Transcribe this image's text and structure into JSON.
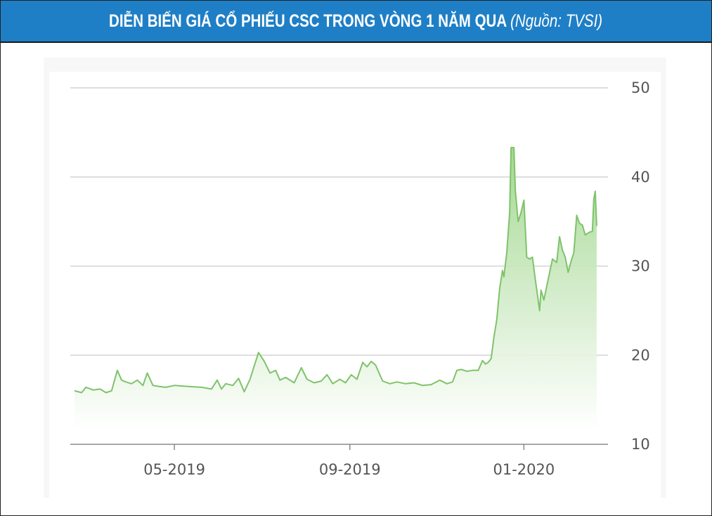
{
  "header": {
    "title": "DIỄN BIẾN GIÁ CỔ PHIẾU CSC TRONG VÒNG 1 NĂM QUA",
    "source": "(Nguồn: TVSI)"
  },
  "chart_data": {
    "type": "area",
    "title": "DIỄN BIẾN GIÁ CỔ PHIẾU CSC TRONG VÒNG 1 NĂM QUA",
    "xlabel": "",
    "ylabel": "",
    "ylim": [
      10,
      50
    ],
    "yticks": [
      10,
      20,
      30,
      40,
      50
    ],
    "xticks": [
      {
        "label": "05-2019",
        "date": "2019-05-01"
      },
      {
        "label": "09-2019",
        "date": "2019-09-01"
      },
      {
        "label": "01-2020",
        "date": "2020-01-01"
      }
    ],
    "xlim": [
      "2019-02-20",
      "2020-02-25"
    ],
    "grid": true,
    "colors": {
      "line": "#7fc36b",
      "fill_top": "#9fd68c",
      "fill_bottom": "#ffffff",
      "grid": "#d4d4d4"
    },
    "series": [
      {
        "points": [
          [
            "2019-02-20",
            16.0
          ],
          [
            "2019-02-25",
            15.8
          ],
          [
            "2019-02-28",
            16.4
          ],
          [
            "2019-03-05",
            16.1
          ],
          [
            "2019-03-10",
            16.2
          ],
          [
            "2019-03-14",
            15.8
          ],
          [
            "2019-03-18",
            16.0
          ],
          [
            "2019-03-22",
            18.3
          ],
          [
            "2019-03-25",
            17.2
          ],
          [
            "2019-03-28",
            17.0
          ],
          [
            "2019-04-01",
            16.8
          ],
          [
            "2019-04-05",
            17.2
          ],
          [
            "2019-04-09",
            16.6
          ],
          [
            "2019-04-12",
            18.0
          ],
          [
            "2019-04-16",
            16.6
          ],
          [
            "2019-04-20",
            16.5
          ],
          [
            "2019-04-25",
            16.4
          ],
          [
            "2019-05-01",
            16.6
          ],
          [
            "2019-05-10",
            16.5
          ],
          [
            "2019-05-20",
            16.4
          ],
          [
            "2019-05-27",
            16.2
          ],
          [
            "2019-05-31",
            17.2
          ],
          [
            "2019-06-03",
            16.2
          ],
          [
            "2019-06-06",
            16.8
          ],
          [
            "2019-06-11",
            16.6
          ],
          [
            "2019-06-15",
            17.4
          ],
          [
            "2019-06-19",
            15.9
          ],
          [
            "2019-06-23",
            17.3
          ],
          [
            "2019-06-29",
            20.3
          ],
          [
            "2019-07-03",
            19.3
          ],
          [
            "2019-07-07",
            18.0
          ],
          [
            "2019-07-11",
            18.3
          ],
          [
            "2019-07-14",
            17.2
          ],
          [
            "2019-07-18",
            17.5
          ],
          [
            "2019-07-24",
            16.9
          ],
          [
            "2019-07-29",
            18.6
          ],
          [
            "2019-08-02",
            17.3
          ],
          [
            "2019-08-07",
            16.9
          ],
          [
            "2019-08-12",
            17.1
          ],
          [
            "2019-08-16",
            17.8
          ],
          [
            "2019-08-20",
            16.8
          ],
          [
            "2019-08-25",
            17.3
          ],
          [
            "2019-08-29",
            16.9
          ],
          [
            "2019-09-02",
            17.8
          ],
          [
            "2019-09-06",
            17.3
          ],
          [
            "2019-09-10",
            19.2
          ],
          [
            "2019-09-13",
            18.7
          ],
          [
            "2019-09-16",
            19.3
          ],
          [
            "2019-09-19",
            18.9
          ],
          [
            "2019-09-24",
            17.1
          ],
          [
            "2019-09-29",
            16.8
          ],
          [
            "2019-10-04",
            17.0
          ],
          [
            "2019-10-10",
            16.8
          ],
          [
            "2019-10-16",
            16.9
          ],
          [
            "2019-10-22",
            16.6
          ],
          [
            "2019-10-28",
            16.7
          ],
          [
            "2019-11-03",
            17.2
          ],
          [
            "2019-11-08",
            16.8
          ],
          [
            "2019-11-12",
            17.0
          ],
          [
            "2019-11-15",
            18.3
          ],
          [
            "2019-11-18",
            18.4
          ],
          [
            "2019-11-22",
            18.2
          ],
          [
            "2019-11-26",
            18.3
          ],
          [
            "2019-11-30",
            18.3
          ],
          [
            "2019-12-03",
            19.4
          ],
          [
            "2019-12-05",
            19.0
          ],
          [
            "2019-12-07",
            19.2
          ],
          [
            "2019-12-09",
            19.6
          ],
          [
            "2019-12-11",
            22.0
          ],
          [
            "2019-12-13",
            24.0
          ],
          [
            "2019-12-15",
            27.5
          ],
          [
            "2019-12-17",
            29.5
          ],
          [
            "2019-12-18",
            28.8
          ],
          [
            "2019-12-20",
            31.5
          ],
          [
            "2019-12-22",
            36.0
          ],
          [
            "2019-12-23",
            43.3
          ],
          [
            "2019-12-25",
            43.3
          ],
          [
            "2019-12-26",
            38.5
          ],
          [
            "2019-12-28",
            35.0
          ],
          [
            "2019-12-30",
            36.0
          ],
          [
            "2020-01-01",
            37.4
          ],
          [
            "2020-01-03",
            31.0
          ],
          [
            "2020-01-05",
            30.8
          ],
          [
            "2020-01-07",
            31.0
          ],
          [
            "2020-01-09",
            28.5
          ],
          [
            "2020-01-11",
            26.2
          ],
          [
            "2020-01-12",
            25.0
          ],
          [
            "2020-01-13",
            27.3
          ],
          [
            "2020-01-15",
            26.2
          ],
          [
            "2020-01-18",
            28.5
          ],
          [
            "2020-01-21",
            30.8
          ],
          [
            "2020-01-24",
            30.4
          ],
          [
            "2020-01-26",
            33.3
          ],
          [
            "2020-01-28",
            31.8
          ],
          [
            "2020-01-30",
            31.0
          ],
          [
            "2020-02-01",
            29.3
          ],
          [
            "2020-02-03",
            30.5
          ],
          [
            "2020-02-05",
            31.5
          ],
          [
            "2020-02-07",
            35.7
          ],
          [
            "2020-02-09",
            34.8
          ],
          [
            "2020-02-11",
            34.6
          ],
          [
            "2020-02-13",
            33.5
          ],
          [
            "2020-02-16",
            33.8
          ],
          [
            "2020-02-18",
            33.9
          ],
          [
            "2020-02-19",
            37.5
          ],
          [
            "2020-02-20",
            38.4
          ],
          [
            "2020-02-21",
            34.5
          ]
        ]
      }
    ]
  }
}
